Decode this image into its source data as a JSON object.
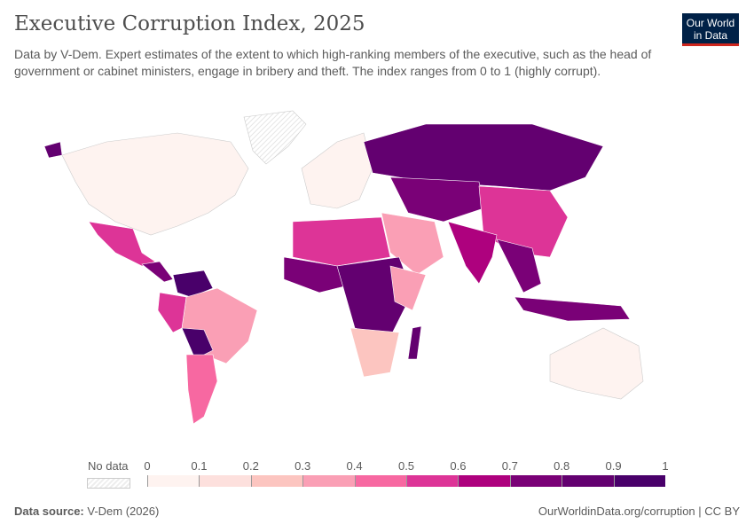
{
  "header": {
    "title": "Executive Corruption Index, 2025",
    "subtitle": "Data by V-Dem. Expert estimates of the extent to which high-ranking members of the executive, such as the head of government or cabinet ministers, engage in bribery and theft. The index ranges from 0 to 1 (highly corrupt).",
    "logo": "Our World in Data"
  },
  "legend": {
    "no_data": "No data",
    "ticks": [
      "0",
      "0.1",
      "0.2",
      "0.3",
      "0.4",
      "0.5",
      "0.6",
      "0.7",
      "0.8",
      "0.9",
      "1"
    ],
    "colors": [
      "#fef3f0",
      "#fde0dd",
      "#fcc5c0",
      "#fa9fb5",
      "#f768a1",
      "#dd3497",
      "#ae017e",
      "#7a0177",
      "#630070",
      "#49006a"
    ]
  },
  "footer": {
    "source_label": "Data source:",
    "source": "V-Dem (2026)",
    "link": "OurWorldinData.org/corruption | CC BY"
  },
  "chart_data": {
    "type": "choropleth",
    "title": "Executive Corruption Index, 2025",
    "range": [
      0,
      1
    ],
    "bins": [
      0,
      0.1,
      0.2,
      0.3,
      0.4,
      0.5,
      0.6,
      0.7,
      0.8,
      0.9,
      1
    ]
  }
}
